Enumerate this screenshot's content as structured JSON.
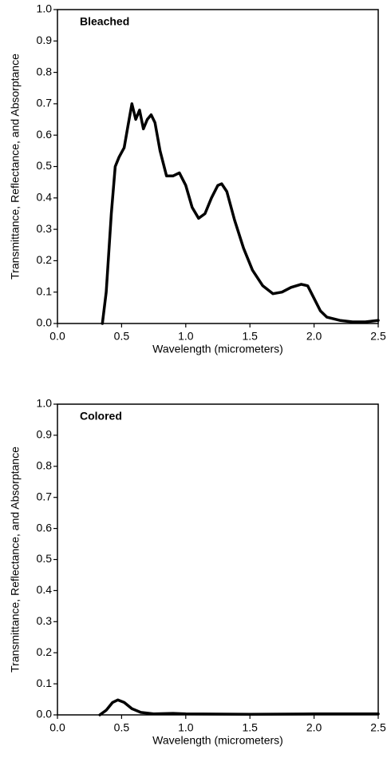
{
  "chart_data": [
    {
      "type": "line",
      "annotation": "Bleached",
      "xlabel": "Wavelength (micrometers)",
      "ylabel": "Transmittance, Reflectance, and Absorptance",
      "color": "#000000",
      "x": [
        0.35,
        0.38,
        0.42,
        0.45,
        0.48,
        0.52,
        0.55,
        0.58,
        0.61,
        0.64,
        0.67,
        0.7,
        0.73,
        0.76,
        0.8,
        0.85,
        0.9,
        0.95,
        1.0,
        1.05,
        1.1,
        1.15,
        1.2,
        1.25,
        1.28,
        1.32,
        1.38,
        1.45,
        1.52,
        1.6,
        1.68,
        1.75,
        1.82,
        1.9,
        1.95,
        2.0,
        2.05,
        2.1,
        2.2,
        2.3,
        2.4,
        2.5
      ],
      "values": [
        0,
        0.1,
        0.35,
        0.5,
        0.53,
        0.56,
        0.63,
        0.7,
        0.65,
        0.68,
        0.62,
        0.65,
        0.665,
        0.64,
        0.55,
        0.47,
        0.47,
        0.48,
        0.44,
        0.37,
        0.335,
        0.35,
        0.4,
        0.44,
        0.445,
        0.42,
        0.33,
        0.24,
        0.17,
        0.12,
        0.095,
        0.1,
        0.115,
        0.125,
        0.12,
        0.08,
        0.04,
        0.02,
        0.01,
        0.005,
        0.005,
        0.01
      ],
      "xlim": [
        0,
        2.5
      ],
      "ylim": [
        0,
        1
      ],
      "xticks": [
        {
          "value": 0,
          "label": "0.0"
        },
        0.5,
        {
          "value": 1,
          "label": "1.0"
        },
        1.5,
        {
          "value": 2,
          "label": "2.0"
        },
        2.5
      ],
      "yticks": [
        {
          "value": 0,
          "label": "0.0"
        },
        0.1,
        0.2,
        0.3,
        0.4,
        0.5,
        0.6,
        0.7,
        0.8,
        0.9,
        {
          "value": 1,
          "label": "1.0"
        }
      ]
    },
    {
      "type": "line",
      "annotation": "Colored",
      "xlabel": "Wavelength (micrometers)",
      "ylabel": "Transmittance, Reflectance, and Absorptance",
      "color": "#000000",
      "x": [
        0.33,
        0.38,
        0.43,
        0.47,
        0.52,
        0.58,
        0.65,
        0.75,
        0.9,
        1.0,
        1.5,
        2.0,
        2.5
      ],
      "values": [
        0,
        0.015,
        0.04,
        0.048,
        0.04,
        0.02,
        0.008,
        0.003,
        0.005,
        0.003,
        0.002,
        0.003,
        0.003
      ],
      "xlim": [
        0,
        2.5
      ],
      "ylim": [
        0,
        1
      ],
      "xticks": [
        {
          "value": 0,
          "label": "0.0"
        },
        0.5,
        {
          "value": 1,
          "label": "1.0"
        },
        1.5,
        {
          "value": 2,
          "label": "2.0"
        },
        2.5
      ],
      "yticks": [
        {
          "value": 0,
          "label": "0.0"
        },
        0.1,
        0.2,
        0.3,
        0.4,
        0.5,
        0.6,
        0.7,
        0.8,
        0.9,
        {
          "value": 1,
          "label": "1.0"
        }
      ]
    }
  ]
}
